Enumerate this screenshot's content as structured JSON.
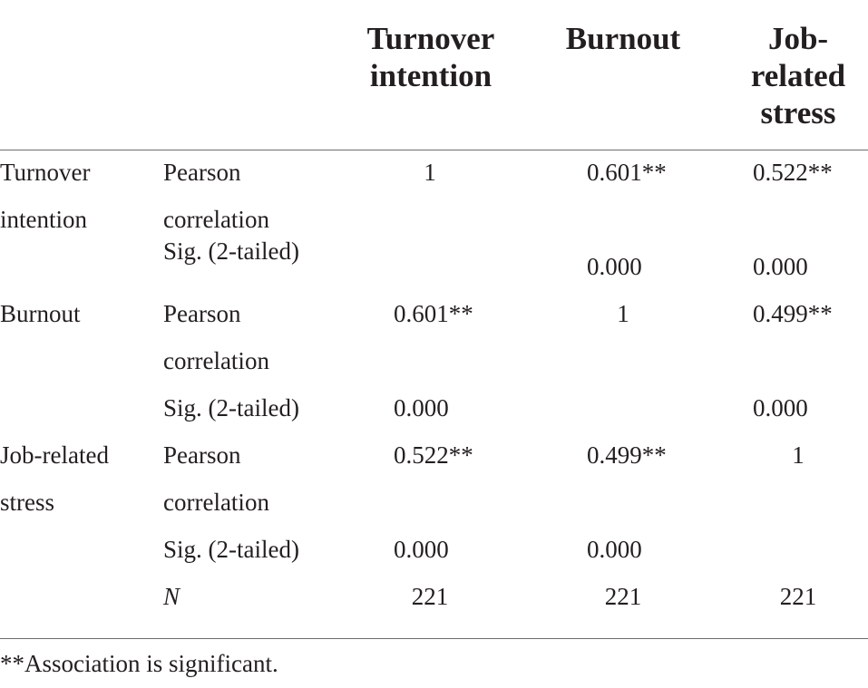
{
  "table": {
    "columns": {
      "turnover": [
        "Turnover",
        "intention"
      ],
      "burnout": [
        "Burnout"
      ],
      "stress": [
        "Job-",
        "related",
        "stress"
      ]
    },
    "rows": {
      "turnover": {
        "label": [
          "Turnover",
          "intention"
        ],
        "pearson_label": [
          "Pearson",
          "correlation"
        ],
        "sig_label": "Sig. (2-tailed)",
        "pearson": {
          "turnover": "1",
          "burnout": "0.601**",
          "stress": "0.522**"
        },
        "sig": {
          "burnout": "0.000",
          "stress": "0.000"
        }
      },
      "burnout": {
        "label": [
          "Burnout"
        ],
        "pearson_label": [
          "Pearson",
          "correlation"
        ],
        "sig_label": "Sig. (2-tailed)",
        "pearson": {
          "turnover": "0.601**",
          "burnout": "1",
          "stress": "0.499**"
        },
        "sig": {
          "turnover": "0.000",
          "stress": "0.000"
        }
      },
      "stress": {
        "label": [
          "Job-related",
          "stress"
        ],
        "pearson_label": [
          "Pearson",
          "correlation"
        ],
        "sig_label": "Sig. (2-tailed)",
        "n_label": "N",
        "pearson": {
          "turnover": "0.522**",
          "burnout": "0.499**",
          "stress": "1"
        },
        "sig": {
          "turnover": "0.000",
          "burnout": "0.000"
        },
        "n": {
          "turnover": "221",
          "burnout": "221",
          "stress": "221"
        }
      }
    },
    "footnote": "**Association is significant."
  }
}
